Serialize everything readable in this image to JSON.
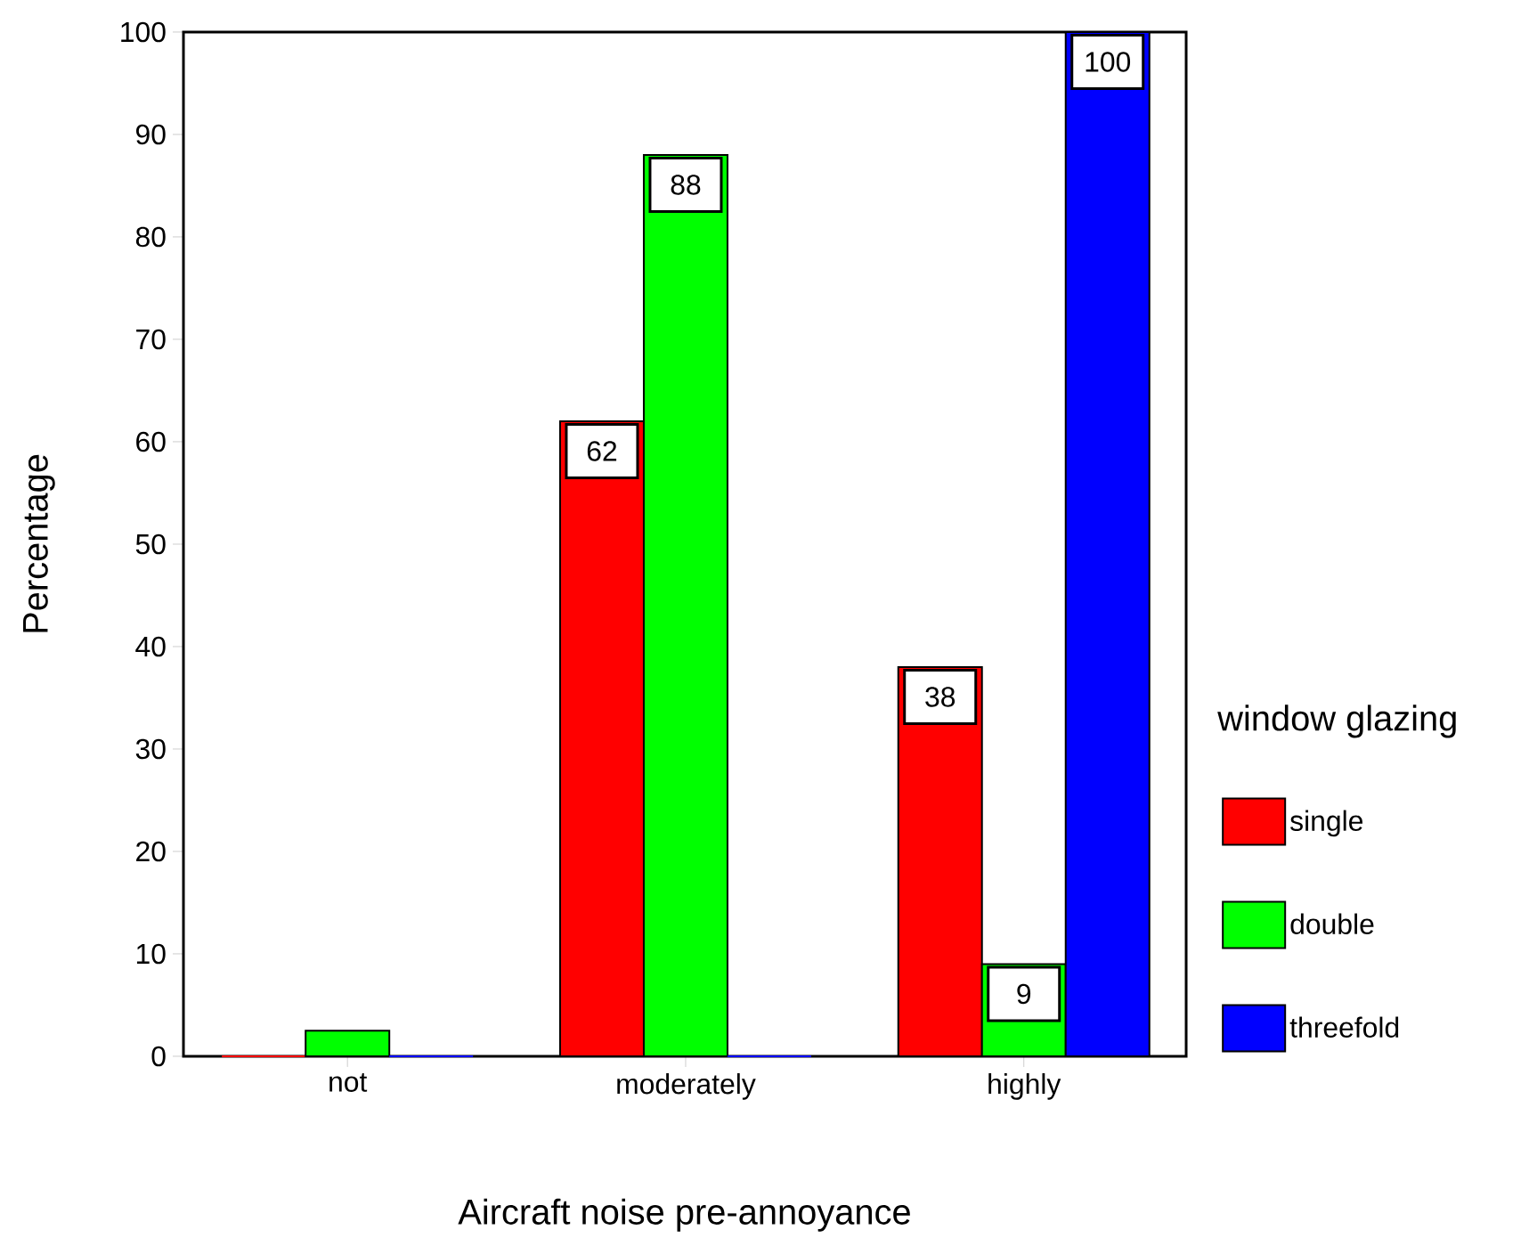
{
  "chart_data": {
    "type": "bar",
    "xlabel": "Aircraft noise pre-annoyance",
    "ylabel": "Percentage",
    "legend_title": "window glazing",
    "legend": "right",
    "categories": [
      "not",
      "moderately",
      "highly"
    ],
    "series": [
      {
        "name": "single",
        "color": "#ff0000",
        "values": [
          0,
          62,
          38
        ],
        "value_labels": [
          null,
          "62",
          "38"
        ]
      },
      {
        "name": "double",
        "color": "#00ff00",
        "values": [
          2.5,
          88,
          9
        ],
        "value_labels": [
          null,
          "88",
          "9"
        ]
      },
      {
        "name": "threefold",
        "color": "#0000ff",
        "values": [
          0,
          0,
          100
        ],
        "value_labels": [
          null,
          null,
          "100"
        ]
      }
    ],
    "ylim": [
      0,
      100
    ],
    "yticks": [
      0,
      10,
      20,
      30,
      40,
      50,
      60,
      70,
      80,
      90,
      100
    ]
  }
}
